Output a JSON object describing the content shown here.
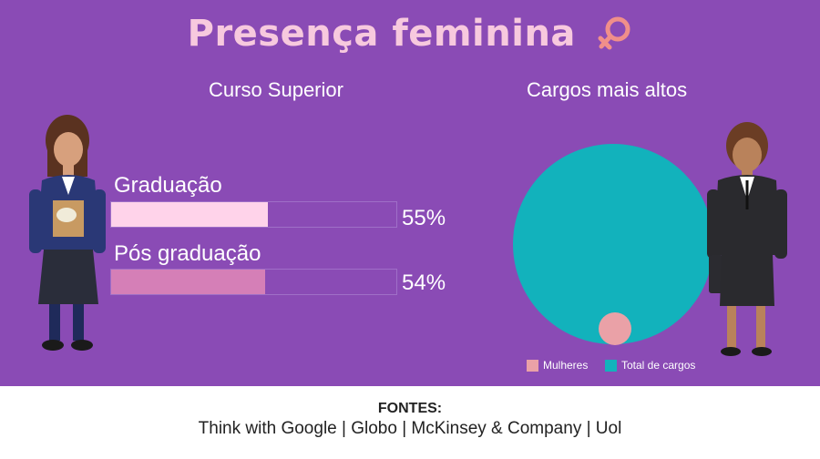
{
  "header": {
    "title": "Presença feminina",
    "icon": "venus-symbol-icon"
  },
  "colors": {
    "background": "#8a4bb5",
    "title": "#f7c9de",
    "graduacao": "#ffd3ea",
    "pos": "#d57fb7",
    "mulheres": "#eaa1a7",
    "total": "#12b2bc"
  },
  "left": {
    "subtitle": "Curso Superior"
  },
  "right": {
    "subtitle": "Cargos mais altos"
  },
  "chart_data": [
    {
      "type": "bar",
      "title": "Curso Superior",
      "categories": [
        "Graduação",
        "Pós graduação"
      ],
      "values": [
        55,
        54
      ],
      "value_labels": [
        "55%",
        "54%"
      ],
      "ylim": [
        0,
        100
      ],
      "orientation": "horizontal"
    },
    {
      "type": "scatter",
      "subtitle": "proportional circles",
      "title": "Cargos mais altos",
      "series": [
        {
          "name": "Mulheres",
          "value": 1
        },
        {
          "name": "Total de cargos",
          "value": 100
        }
      ],
      "legend": "bottom"
    }
  ],
  "footer": {
    "title": "FONTES:",
    "sources": "Think with Google | Globo | McKinsey & Company | Uol"
  }
}
